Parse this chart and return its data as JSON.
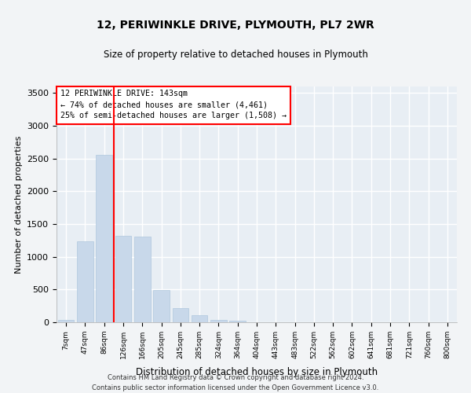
{
  "title": "12, PERIWINKLE DRIVE, PLYMOUTH, PL7 2WR",
  "subtitle": "Size of property relative to detached houses in Plymouth",
  "xlabel": "Distribution of detached houses by size in Plymouth",
  "ylabel": "Number of detached properties",
  "bar_color": "#c8d8ea",
  "bar_edgecolor": "#b0c8de",
  "background_color": "#e8eef4",
  "grid_color": "#ffffff",
  "fig_background": "#f2f4f6",
  "categories": [
    "7sqm",
    "47sqm",
    "86sqm",
    "126sqm",
    "166sqm",
    "205sqm",
    "245sqm",
    "285sqm",
    "324sqm",
    "364sqm",
    "404sqm",
    "443sqm",
    "483sqm",
    "522sqm",
    "562sqm",
    "602sqm",
    "641sqm",
    "681sqm",
    "721sqm",
    "760sqm",
    "800sqm"
  ],
  "values": [
    40,
    1240,
    2560,
    1320,
    1310,
    490,
    220,
    110,
    35,
    20,
    5,
    2,
    1,
    0,
    0,
    0,
    0,
    0,
    0,
    0,
    0
  ],
  "ylim": [
    0,
    3600
  ],
  "yticks": [
    0,
    500,
    1000,
    1500,
    2000,
    2500,
    3000,
    3500
  ],
  "annotation_title": "12 PERIWINKLE DRIVE: 143sqm",
  "annotation_line1": "← 74% of detached houses are smaller (4,461)",
  "annotation_line2": "25% of semi-detached houses are larger (1,508) →",
  "footer_line1": "Contains HM Land Registry data © Crown copyright and database right 2024.",
  "footer_line2": "Contains public sector information licensed under the Open Government Licence v3.0.",
  "red_line_bar_index": 3
}
